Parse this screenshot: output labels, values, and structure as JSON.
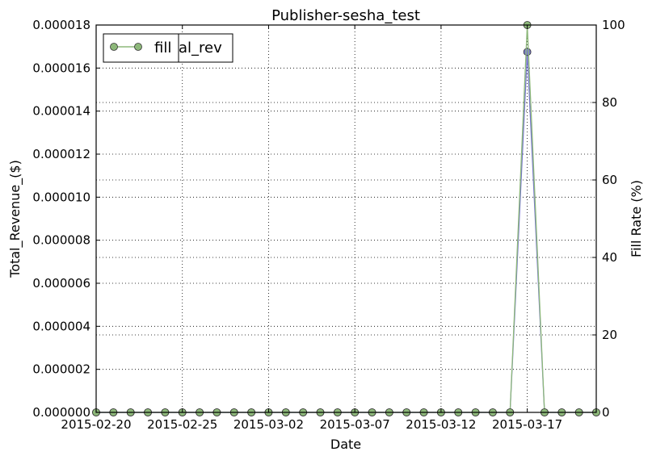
{
  "chart_data": {
    "type": "line",
    "title": "Publisher-sesha_test",
    "xlabel": "Date",
    "ylabel_left": "Total_Revenue_($)",
    "ylabel_right": "Fill Rate (%)",
    "x_tick_labels": [
      "2015-02-20",
      "2015-02-25",
      "2015-03-02",
      "2015-03-07",
      "2015-03-12",
      "2015-03-17"
    ],
    "y_left_tick_labels": [
      "0.000000",
      "0.000002",
      "0.000004",
      "0.000006",
      "0.000008",
      "0.000010",
      "0.000012",
      "0.000014",
      "0.000016",
      "0.000018"
    ],
    "y_right_tick_labels": [
      "0",
      "20",
      "40",
      "60",
      "80",
      "100"
    ],
    "ylim_left": [
      0,
      1.8e-05
    ],
    "ylim_right": [
      0,
      100
    ],
    "xlim": [
      "2015-02-20",
      "2015-03-21"
    ],
    "grid": true,
    "legend": {
      "placement": "top-left",
      "entries": [
        {
          "label": "total_rev",
          "color": "#7777cc",
          "marker": "circle"
        },
        {
          "label": "fill",
          "color": "#8db87a",
          "marker": "circle"
        }
      ],
      "visible_text_1": "fill",
      "visible_text_2": "al_rev"
    },
    "x": [
      "2015-02-20",
      "2015-02-21",
      "2015-02-22",
      "2015-02-23",
      "2015-02-24",
      "2015-02-25",
      "2015-02-26",
      "2015-02-27",
      "2015-02-28",
      "2015-03-01",
      "2015-03-02",
      "2015-03-03",
      "2015-03-04",
      "2015-03-05",
      "2015-03-06",
      "2015-03-07",
      "2015-03-08",
      "2015-03-09",
      "2015-03-10",
      "2015-03-11",
      "2015-03-12",
      "2015-03-13",
      "2015-03-14",
      "2015-03-15",
      "2015-03-16",
      "2015-03-17",
      "2015-03-18",
      "2015-03-19",
      "2015-03-20",
      "2015-03-21"
    ],
    "series": [
      {
        "name": "total_rev",
        "axis": "left",
        "color": "#7777cc",
        "values": [
          0,
          0,
          0,
          0,
          0,
          0,
          0,
          0,
          0,
          0,
          0,
          0,
          0,
          0,
          0,
          0,
          0,
          0,
          0,
          0,
          0,
          0,
          0,
          0,
          0,
          1.675e-05,
          0,
          0,
          0,
          0
        ]
      },
      {
        "name": "fill",
        "axis": "right",
        "color": "#8db87a",
        "values": [
          0,
          0,
          0,
          0,
          0,
          0,
          0,
          0,
          0,
          0,
          0,
          0,
          0,
          0,
          0,
          0,
          0,
          0,
          0,
          0,
          0,
          0,
          0,
          0,
          0,
          100,
          0,
          0,
          0,
          0
        ]
      }
    ]
  }
}
